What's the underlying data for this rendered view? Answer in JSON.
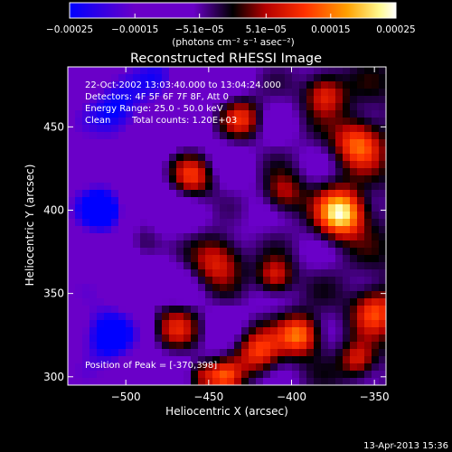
{
  "chart_data": {
    "type": "heatmap",
    "title": "Reconstructed RHESSI Image",
    "xlabel": "Heliocentric X (arcsec)",
    "ylabel": "Heliocentric Y (arcsec)",
    "xlim": [
      -535,
      -343
    ],
    "ylim": [
      295,
      486
    ],
    "x_ticks": [
      -500,
      -450,
      -400,
      -350
    ],
    "x_tick_labels": [
      "−500",
      "−450",
      "−400",
      "−350"
    ],
    "y_ticks": [
      300,
      350,
      400,
      450
    ],
    "y_tick_labels": [
      "300",
      "350",
      "400",
      "450"
    ],
    "colorbar": {
      "ticks": [
        -0.00025,
        -0.00015,
        -5.1e-05,
        5.1e-05,
        0.00015,
        0.00025
      ],
      "tick_labels": [
        "−0.00025",
        "−0.00015",
        "−5.1e−05",
        "5.1e−05",
        "0.00015",
        "0.00025"
      ],
      "units_label": "(photons cm⁻² s⁻¹ asec⁻²)",
      "colormap": [
        "#0000ff",
        "#6a00c8",
        "#6a00c8",
        "#000000",
        "#b40000",
        "#ff3000",
        "#ffa000",
        "#fffa90",
        "#ffffff"
      ],
      "range": [
        -0.00025,
        0.00025
      ]
    },
    "annotations": [
      "22-Oct-2002 13:03:40.000 to 13:04:24.000",
      "Detectors: 4F 5F 6F 7F 8F, Att 0",
      "Energy Range: 25.0 - 50.0 keV",
      "Clean",
      "Total counts: 1.20E+03",
      "Position of Peak = [-370,398]"
    ],
    "peak": {
      "x": -370,
      "y": 398
    },
    "grid": false,
    "legend": "colorbar-top"
  },
  "footer": {
    "timestamp": "13-Apr-2013 15:36"
  }
}
